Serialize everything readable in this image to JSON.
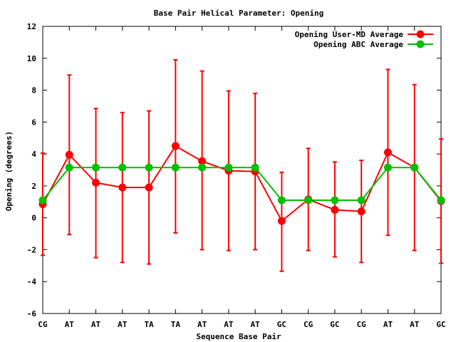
{
  "chart_data": {
    "type": "line",
    "title": "Base Pair Helical Parameter: Opening",
    "xlabel": "Sequence Base Pair",
    "ylabel": "Opening (degrees)",
    "categories": [
      "CG",
      "AT",
      "AT",
      "AT",
      "TA",
      "TA",
      "AT",
      "AT",
      "AT",
      "GC",
      "CG",
      "GC",
      "CG",
      "AT",
      "AT",
      "GC"
    ],
    "ylim": [
      -6,
      12
    ],
    "yticks": [
      -6,
      -4,
      -2,
      0,
      2,
      4,
      6,
      8,
      10,
      12
    ],
    "ytick_labels": [
      "-6",
      "-4",
      "-2",
      "0",
      "2",
      "4",
      "6",
      "8",
      "10",
      "12"
    ],
    "grid": false,
    "legend_position": "top-right",
    "series": [
      {
        "name": "Opening User-MD Average",
        "color": "#ff0000",
        "values": [
          0.85,
          3.95,
          2.2,
          1.9,
          1.9,
          4.5,
          3.55,
          2.95,
          2.9,
          -0.2,
          1.15,
          0.5,
          0.4,
          4.1,
          3.15,
          1.05
        ],
        "err_low": [
          -2.35,
          -1.05,
          -2.5,
          -2.8,
          -2.9,
          -0.95,
          -2.0,
          -2.05,
          -2.0,
          -3.35,
          -2.05,
          -2.45,
          -2.8,
          -1.1,
          -2.05,
          -2.85
        ],
        "err_high": [
          4.05,
          8.95,
          6.85,
          6.6,
          6.7,
          9.9,
          9.2,
          7.95,
          7.8,
          2.85,
          4.35,
          3.5,
          3.6,
          9.3,
          8.35,
          4.95
        ]
      },
      {
        "name": "Opening ABC Average",
        "color": "#00c000",
        "values": [
          1.1,
          3.15,
          3.15,
          3.15,
          3.15,
          3.15,
          3.15,
          3.15,
          3.15,
          1.1,
          1.1,
          1.1,
          1.1,
          3.15,
          3.15,
          1.1
        ]
      }
    ]
  }
}
